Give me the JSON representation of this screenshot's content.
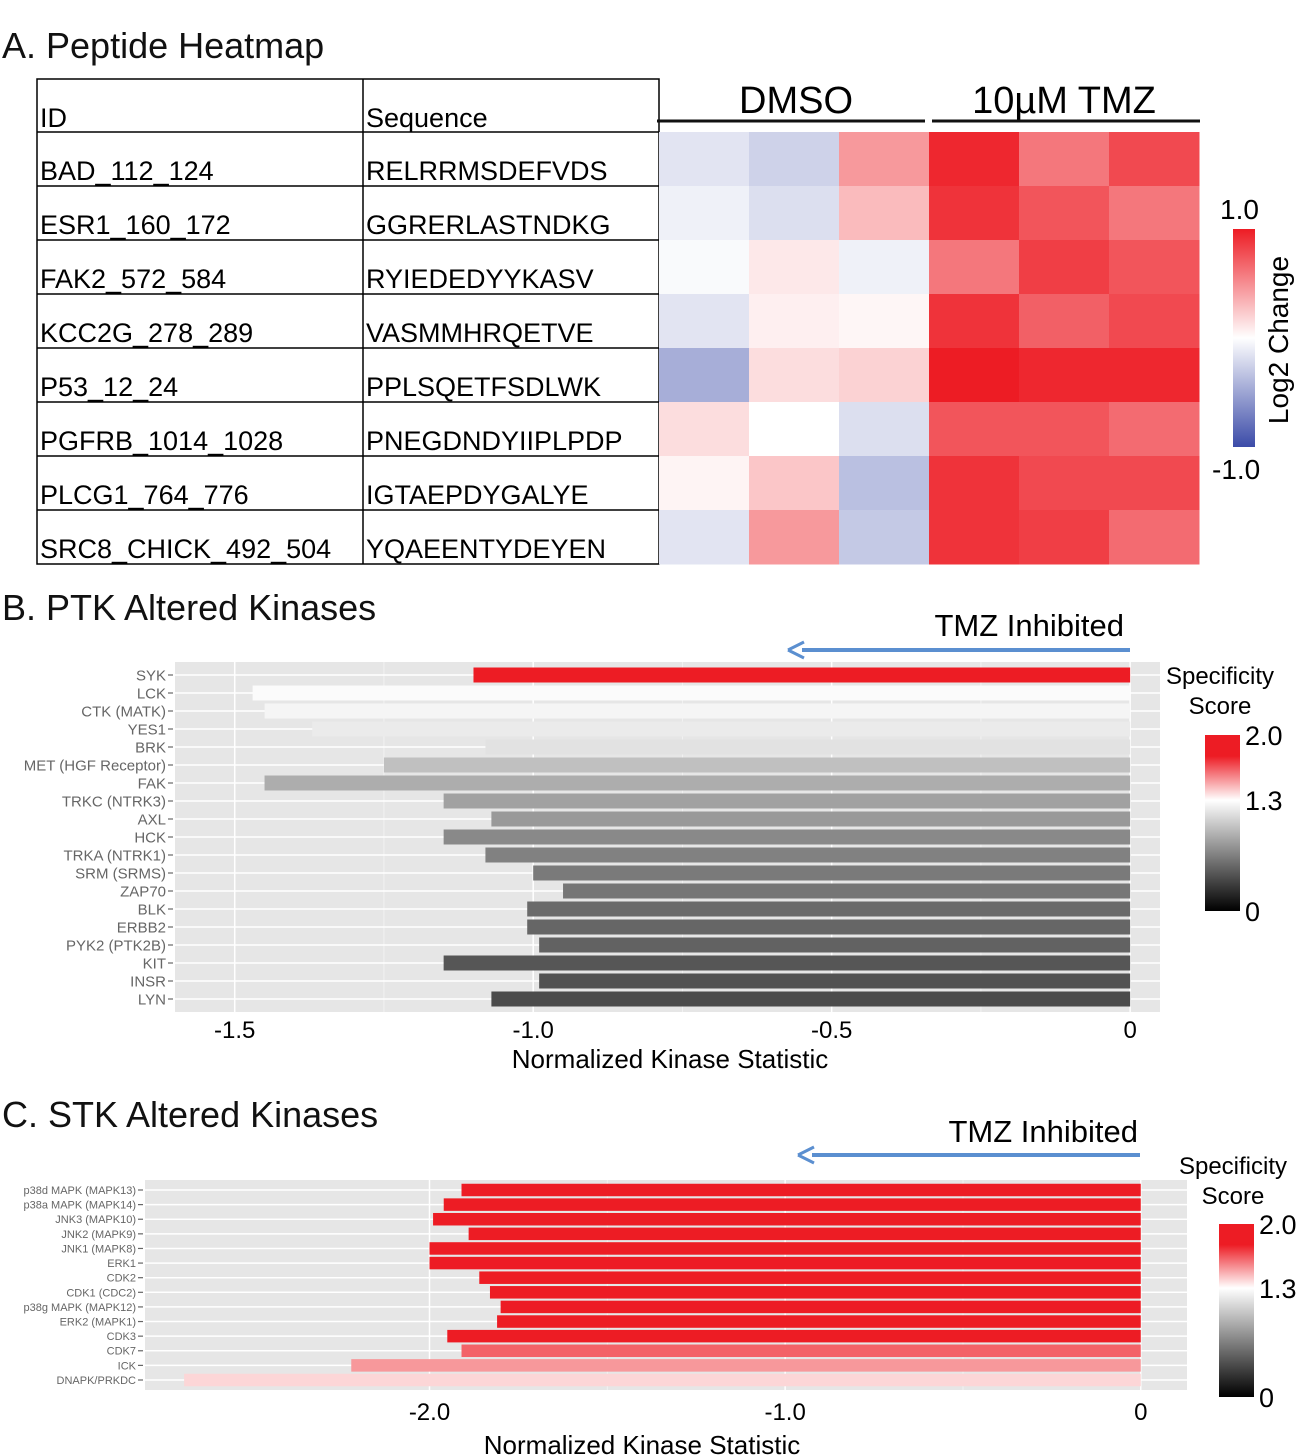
{
  "chart_data": [
    {
      "type": "heatmap",
      "title": "A. Peptide Heatmap",
      "table_headers": [
        "ID",
        "Sequence"
      ],
      "group_labels": [
        "DMSO",
        "10µM TMZ"
      ],
      "rows": [
        {
          "id": "BAD_112_124",
          "sequence": "RELRRMSDEFVDS",
          "values": [
            -0.15,
            -0.25,
            0.45,
            0.95,
            0.6,
            0.8
          ]
        },
        {
          "id": "ESR1_160_172",
          "sequence": "GGRERLASTNDKG",
          "values": [
            -0.08,
            -0.18,
            0.3,
            0.9,
            0.75,
            0.6
          ]
        },
        {
          "id": "FAK2_572_584",
          "sequence": "RYIEDEDYYKASV",
          "values": [
            -0.03,
            0.1,
            -0.08,
            0.6,
            0.85,
            0.75
          ]
        },
        {
          "id": "KCC2G_278_289",
          "sequence": "VASMMHRQETVE",
          "values": [
            -0.15,
            0.07,
            0.04,
            0.9,
            0.7,
            0.8
          ]
        },
        {
          "id": "P53_12_24",
          "sequence": "PPLSQETFSDLWK",
          "values": [
            -0.45,
            0.15,
            0.2,
            1.0,
            0.95,
            0.95
          ]
        },
        {
          "id": "PGFRB_1014_1028",
          "sequence": "PNEGDNDYIIPLPDP",
          "values": [
            0.15,
            0.0,
            -0.18,
            0.75,
            0.75,
            0.65
          ]
        },
        {
          "id": "PLCG1_764_776",
          "sequence": "IGTAEPDYGALYE",
          "values": [
            0.05,
            0.25,
            -0.35,
            0.9,
            0.8,
            0.8
          ]
        },
        {
          "id": "SRC8_CHICK_492_504",
          "sequence": "YQAEENTYDEYEN",
          "values": [
            -0.15,
            0.45,
            -0.3,
            0.9,
            0.85,
            0.65
          ]
        }
      ],
      "colorbar": {
        "label": "Log2 Change",
        "max_label": "1.0",
        "min_label": "-1.0",
        "range": [
          -1,
          1
        ],
        "colors": {
          "low": "#3b4ba8",
          "mid": "#ffffff",
          "high": "#ed1c24"
        }
      }
    },
    {
      "type": "bar",
      "orientation": "horizontal",
      "title": "B. PTK Altered Kinases",
      "annotation": "TMZ Inhibited",
      "xlabel": "Normalized Kinase Statistic",
      "xlim": [
        -1.6,
        0.05
      ],
      "xticks": [
        {
          "v": -1.5,
          "label": "-1.5"
        },
        {
          "v": -1.0,
          "label": "-1.0"
        },
        {
          "v": -0.5,
          "label": "-0.5"
        },
        {
          "v": 0,
          "label": "0"
        }
      ],
      "grid": true,
      "categories": [
        "SYK",
        "LCK",
        "CTK (MATK)",
        "YES1",
        "BRK",
        "MET (HGF Receptor)",
        "FAK",
        "TRKC (NTRK3)",
        "AXL",
        "HCK",
        "TRKA (NTRK1)",
        "SRM (SRMS)",
        "ZAP70",
        "BLK",
        "ERBB2",
        "PYK2 (PTK2B)",
        "KIT",
        "INSR",
        "LYN"
      ],
      "values": [
        -1.1,
        -1.47,
        -1.45,
        -1.37,
        -1.08,
        -1.25,
        -1.45,
        -1.15,
        -1.07,
        -1.15,
        -1.08,
        -1.0,
        -0.95,
        -1.01,
        -1.01,
        -0.99,
        -1.15,
        -0.99,
        -1.07
      ],
      "specificity": [
        2.0,
        1.28,
        1.25,
        1.2,
        1.15,
        0.98,
        0.88,
        0.82,
        0.78,
        0.7,
        0.66,
        0.62,
        0.6,
        0.54,
        0.52,
        0.5,
        0.44,
        0.42,
        0.38
      ],
      "legend": {
        "title": [
          "Specificity",
          "Score"
        ],
        "labels": [
          "2.0",
          "1.3",
          "0"
        ],
        "placement": "right",
        "colors": {
          "low": "#000000",
          "mid": "#ffffff",
          "high": "#ed1c24"
        }
      }
    },
    {
      "type": "bar",
      "orientation": "horizontal",
      "title": "C. STK Altered Kinases",
      "annotation": "TMZ Inhibited",
      "xlabel": "Normalized Kinase Statistic",
      "xlim": [
        -2.8,
        0.13
      ],
      "xticks": [
        {
          "v": -2.0,
          "label": "-2.0"
        },
        {
          "v": -1.0,
          "label": "-1.0"
        },
        {
          "v": 0,
          "label": "0"
        }
      ],
      "grid": true,
      "categories": [
        "p38d MAPK (MAPK13)",
        "p38a MAPK (MAPK14)",
        "JNK3 (MAPK10)",
        "JNK2 (MAPK9)",
        "JNK1 (MAPK8)",
        "ERK1",
        "CDK2",
        "CDK1 (CDC2)",
        "p38g MAPK (MAPK12)",
        "ERK2 (MAPK1)",
        "CDK3",
        "CDK7",
        "ICK",
        "DNAPK/PRKDC"
      ],
      "values": [
        -1.91,
        -1.96,
        -1.99,
        -1.89,
        -2.0,
        -2.0,
        -1.86,
        -1.83,
        -1.8,
        -1.81,
        -1.95,
        -1.91,
        -2.22,
        -2.69
      ],
      "specificity": [
        2.0,
        2.0,
        2.0,
        2.0,
        2.0,
        2.0,
        2.0,
        2.0,
        2.0,
        2.0,
        1.88,
        1.68,
        1.55,
        1.4
      ],
      "legend": {
        "title": [
          "Specificity",
          "Score"
        ],
        "labels": [
          "2.0",
          "1.3",
          "0"
        ],
        "placement": "right",
        "colors": {
          "low": "#000000",
          "mid": "#ffffff",
          "high": "#ed1c24"
        }
      }
    }
  ],
  "colors": {
    "arrow": "#5b8fd0",
    "panel_bg": "#e6e6e6"
  }
}
